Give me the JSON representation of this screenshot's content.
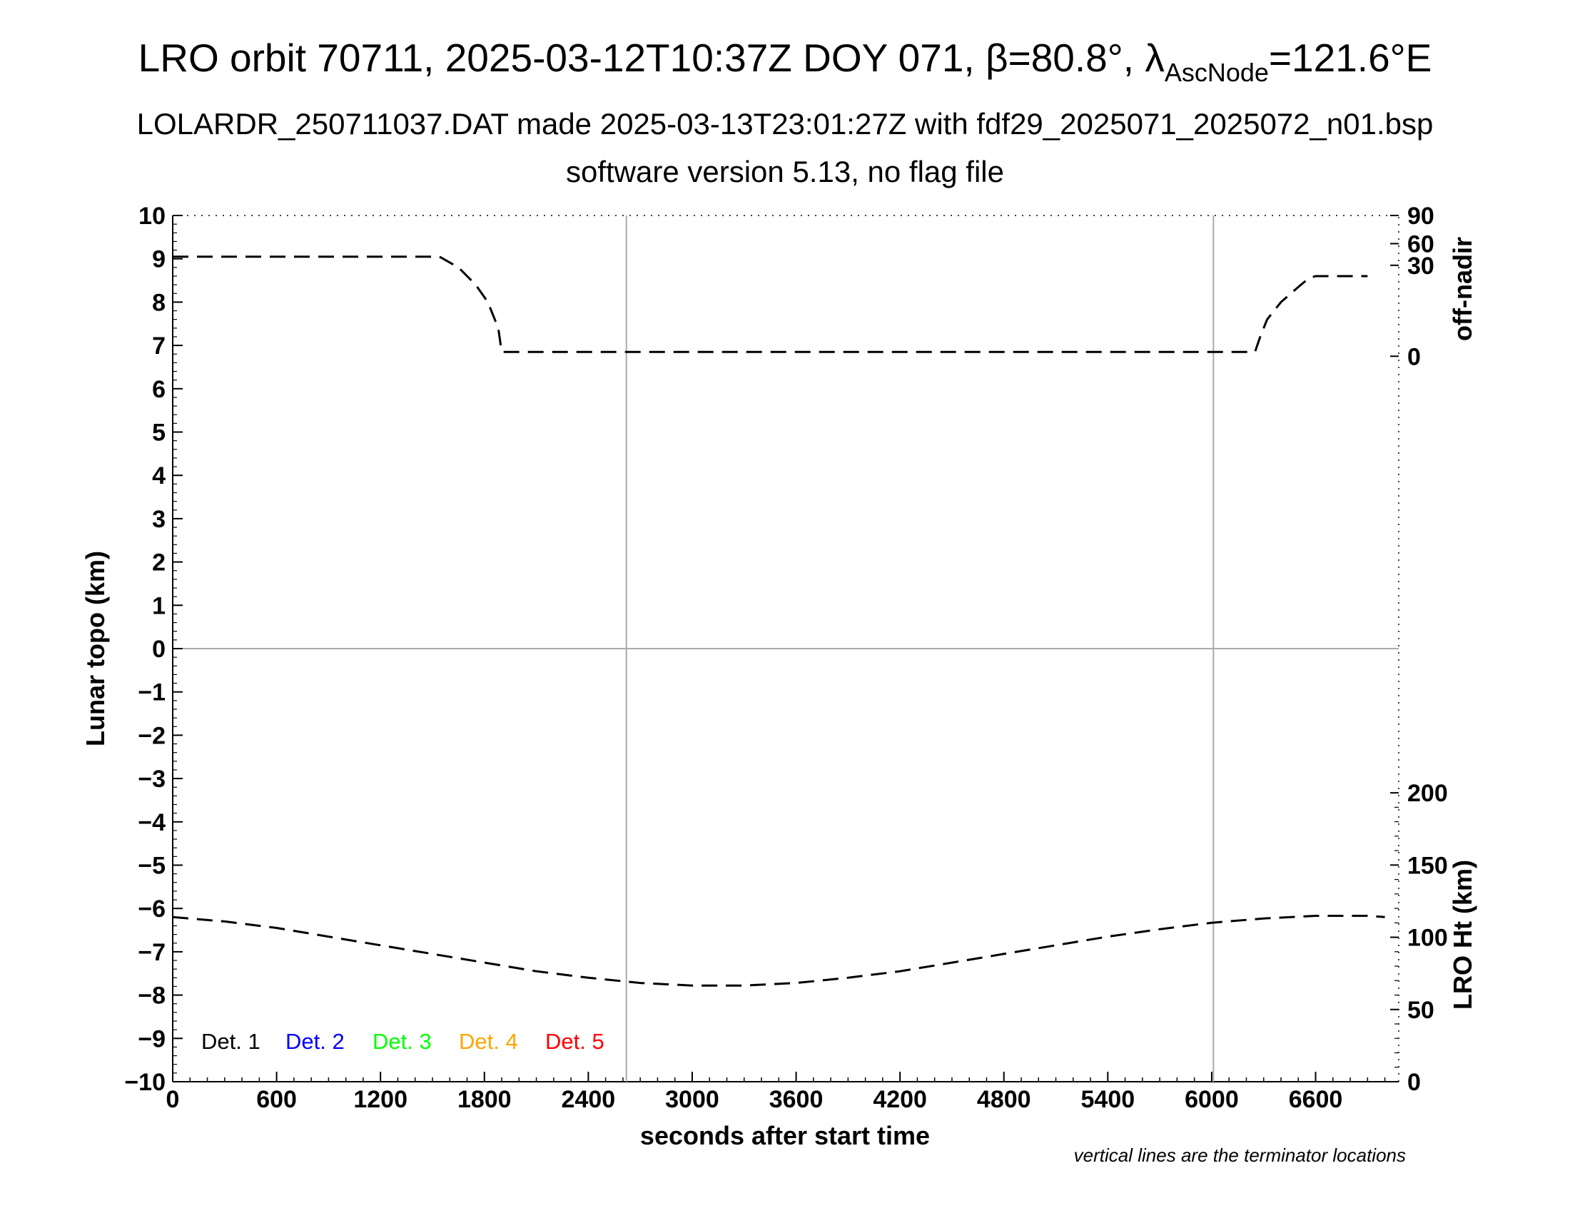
{
  "title": {
    "main_prefix": "LRO orbit 70711, 2025-03-12T10:37Z DOY 071, β=80.8°, λ",
    "main_sub": "AscNode",
    "main_suffix": "=121.6°E",
    "line2": "LOLARDR_250711037.DAT made 2025-03-13T23:01:27Z with fdf29_2025071_2025072_n01.bsp",
    "line3": "software version 5.13, no flag file"
  },
  "axes": {
    "xlabel": "seconds after start time",
    "ylabel_left": "Lunar topo (km)",
    "ylabel_right_top": "off-nadir",
    "ylabel_right_bottom": "LRO Ht (km)",
    "x_ticks": [
      "0",
      "600",
      "1200",
      "1800",
      "2400",
      "3000",
      "3600",
      "4200",
      "4800",
      "5400",
      "6000",
      "6600"
    ],
    "y_ticks": [
      "10",
      "9",
      "8",
      "7",
      "6",
      "5",
      "4",
      "3",
      "2",
      "1",
      "0",
      "−1",
      "−2",
      "−3",
      "−4",
      "−5",
      "−6",
      "−7",
      "−8",
      "−9",
      "−10"
    ],
    "right_top_ticks": [
      "90",
      "60",
      "30",
      "0"
    ],
    "right_bottom_ticks": [
      "200",
      "150",
      "100",
      "50",
      "0"
    ]
  },
  "legend": [
    {
      "label": "Det. 1",
      "color": "#000000"
    },
    {
      "label": "Det. 2",
      "color": "#0000ff"
    },
    {
      "label": "Det. 3",
      "color": "#00ff00"
    },
    {
      "label": "Det. 4",
      "color": "#ffa500"
    },
    {
      "label": "Det. 5",
      "color": "#ff0000"
    }
  ],
  "footnote": "vertical lines are the terminator locations",
  "chart_data": {
    "type": "line",
    "xlim": [
      0,
      7080
    ],
    "ylim": [
      -10,
      10
    ],
    "grid": false,
    "terminator_lines_x": [
      2620,
      6010
    ],
    "zero_line_y": 0,
    "series": [
      {
        "axis": "off-nadir",
        "style": "dashed",
        "x": [
          0,
          1540,
          1650,
          1750,
          1820,
          1880,
          1900,
          2500,
          3000,
          4000,
          4700,
          5500,
          6250,
          6280,
          6320,
          6400,
          6500,
          6560,
          6600,
          6900
        ],
        "y": [
          9.05,
          9.05,
          8.8,
          8.4,
          8.0,
          7.4,
          6.85,
          6.85,
          6.85,
          6.85,
          6.85,
          6.85,
          6.85,
          7.2,
          7.6,
          8.0,
          8.35,
          8.55,
          8.6,
          8.6
        ]
      },
      {
        "axis": "LRO Ht (km)",
        "style": "dashed",
        "x": [
          0,
          300,
          600,
          900,
          1200,
          1500,
          1800,
          2100,
          2400,
          2700,
          3000,
          3300,
          3600,
          3900,
          4200,
          4500,
          4800,
          5100,
          5400,
          5700,
          6000,
          6300,
          6600,
          6900,
          7000
        ],
        "y": [
          -6.2,
          -6.3,
          -6.45,
          -6.65,
          -6.85,
          -7.05,
          -7.25,
          -7.45,
          -7.6,
          -7.72,
          -7.78,
          -7.78,
          -7.72,
          -7.6,
          -7.45,
          -7.25,
          -7.05,
          -6.85,
          -6.65,
          -6.48,
          -6.33,
          -6.23,
          -6.17,
          -6.17,
          -6.2
        ]
      }
    ]
  }
}
